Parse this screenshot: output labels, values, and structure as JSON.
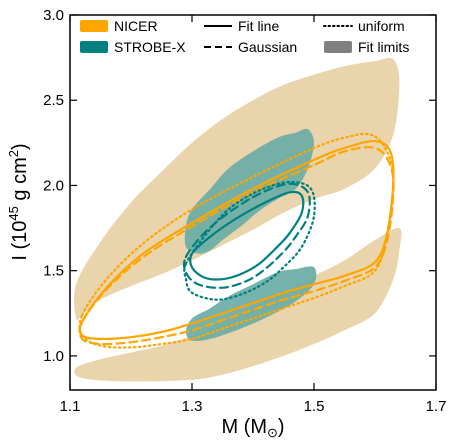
{
  "chart_data": {
    "type": "area",
    "xlabel": {
      "main": "M (M",
      "sub": "⊙",
      "close": ")"
    },
    "ylabel": {
      "main": "I (10",
      "sup1": "45",
      "mid": " g cm",
      "sup2": "2",
      "close": ")"
    },
    "xlim": [
      1.1,
      1.7
    ],
    "ylim": [
      0.8,
      3.0
    ],
    "xticks": [
      "1.1",
      "1.3",
      "1.5",
      "1.7"
    ],
    "xtick_values": [
      1.1,
      1.3,
      1.5,
      1.7
    ],
    "yticks": [
      "1.0",
      "1.5",
      "2.0",
      "2.5",
      "3.0"
    ],
    "ytick_values": [
      1.0,
      1.5,
      2.0,
      2.5,
      3.0
    ],
    "grid": false,
    "legend_position": "top",
    "legend": [
      {
        "label": "NICER",
        "kind": "patch",
        "color": "#ffa500"
      },
      {
        "label": "STROBE-X",
        "kind": "patch",
        "color": "#008080"
      },
      {
        "label": "Fit line",
        "kind": "line",
        "dash": "solid"
      },
      {
        "label": "Gaussian",
        "kind": "line",
        "dash": "dashed"
      },
      {
        "label": "uniform",
        "kind": "line",
        "dash": "dotted"
      },
      {
        "label": "Fit limits",
        "kind": "patch",
        "color": "#808080"
      }
    ],
    "colors": {
      "nicer": "#ffa500",
      "nicer_fill": "#ead4ac",
      "strobex": "#008080",
      "strobex_fill": "#6aada5"
    },
    "series": [
      {
        "name": "NICER",
        "style": "fill_limits",
        "upper_band": [
          [
            1.11,
            1.42
          ],
          [
            1.15,
            1.67
          ],
          [
            1.2,
            1.9
          ],
          [
            1.25,
            2.08
          ],
          [
            1.3,
            2.25
          ],
          [
            1.35,
            2.39
          ],
          [
            1.4,
            2.5
          ],
          [
            1.45,
            2.59
          ],
          [
            1.5,
            2.65
          ],
          [
            1.55,
            2.7
          ],
          [
            1.6,
            2.73
          ],
          [
            1.63,
            2.74
          ],
          [
            1.64,
            2.6
          ],
          [
            1.63,
            2.3
          ],
          [
            1.6,
            2.1
          ],
          [
            1.55,
            1.98
          ],
          [
            1.5,
            1.92
          ],
          [
            1.45,
            1.84
          ],
          [
            1.4,
            1.74
          ],
          [
            1.35,
            1.65
          ],
          [
            1.3,
            1.56
          ],
          [
            1.25,
            1.48
          ],
          [
            1.2,
            1.41
          ],
          [
            1.15,
            1.33
          ],
          [
            1.12,
            1.24
          ],
          [
            1.11,
            1.22
          ]
        ],
        "lower_band": [
          [
            1.11,
            0.93
          ],
          [
            1.15,
            0.98
          ],
          [
            1.2,
            1.02
          ],
          [
            1.25,
            1.06
          ],
          [
            1.3,
            1.12
          ],
          [
            1.35,
            1.2
          ],
          [
            1.4,
            1.29
          ],
          [
            1.45,
            1.38
          ],
          [
            1.5,
            1.47
          ],
          [
            1.55,
            1.56
          ],
          [
            1.6,
            1.68
          ],
          [
            1.64,
            1.75
          ],
          [
            1.64,
            1.62
          ],
          [
            1.63,
            1.45
          ],
          [
            1.6,
            1.25
          ],
          [
            1.55,
            1.15
          ],
          [
            1.5,
            1.07
          ],
          [
            1.45,
            1.0
          ],
          [
            1.4,
            0.94
          ],
          [
            1.35,
            0.89
          ],
          [
            1.3,
            0.86
          ],
          [
            1.2,
            0.85
          ],
          [
            1.12,
            0.87
          ]
        ]
      },
      {
        "name": "STROBE-X",
        "style": "fill_limits",
        "upper_band": [
          [
            1.29,
            1.76
          ],
          [
            1.3,
            1.86
          ],
          [
            1.33,
            1.98
          ],
          [
            1.36,
            2.1
          ],
          [
            1.4,
            2.2
          ],
          [
            1.44,
            2.28
          ],
          [
            1.47,
            2.31
          ],
          [
            1.49,
            2.33
          ],
          [
            1.5,
            2.25
          ],
          [
            1.49,
            2.1
          ],
          [
            1.47,
            1.98
          ],
          [
            1.44,
            1.92
          ],
          [
            1.41,
            1.85
          ],
          [
            1.38,
            1.76
          ],
          [
            1.35,
            1.68
          ],
          [
            1.33,
            1.62
          ],
          [
            1.31,
            1.6
          ],
          [
            1.29,
            1.64
          ]
        ],
        "lower_band": [
          [
            1.29,
            1.14
          ],
          [
            1.3,
            1.22
          ],
          [
            1.33,
            1.28
          ],
          [
            1.36,
            1.35
          ],
          [
            1.4,
            1.42
          ],
          [
            1.44,
            1.49
          ],
          [
            1.47,
            1.51
          ],
          [
            1.5,
            1.52
          ],
          [
            1.5,
            1.42
          ],
          [
            1.47,
            1.32
          ],
          [
            1.43,
            1.24
          ],
          [
            1.38,
            1.16
          ],
          [
            1.33,
            1.1
          ],
          [
            1.3,
            1.09
          ]
        ]
      },
      {
        "name": "NICER",
        "style": "solid",
        "points": [
          [
            1.12,
            1.2
          ],
          [
            1.16,
            1.4
          ],
          [
            1.22,
            1.6
          ],
          [
            1.3,
            1.78
          ],
          [
            1.4,
            1.98
          ],
          [
            1.5,
            2.15
          ],
          [
            1.55,
            2.22
          ],
          [
            1.6,
            2.26
          ],
          [
            1.625,
            2.2
          ],
          [
            1.63,
            2.02
          ],
          [
            1.62,
            1.72
          ],
          [
            1.6,
            1.55
          ],
          [
            1.55,
            1.47
          ],
          [
            1.5,
            1.42
          ],
          [
            1.45,
            1.37
          ],
          [
            1.4,
            1.31
          ],
          [
            1.35,
            1.25
          ],
          [
            1.3,
            1.19
          ],
          [
            1.25,
            1.14
          ],
          [
            1.2,
            1.11
          ],
          [
            1.15,
            1.1
          ],
          [
            1.12,
            1.12
          ]
        ]
      },
      {
        "name": "NICER",
        "style": "dashed",
        "points": [
          [
            1.12,
            1.2
          ],
          [
            1.16,
            1.39
          ],
          [
            1.22,
            1.58
          ],
          [
            1.3,
            1.76
          ],
          [
            1.4,
            1.96
          ],
          [
            1.5,
            2.12
          ],
          [
            1.55,
            2.2
          ],
          [
            1.6,
            2.22
          ],
          [
            1.625,
            2.12
          ],
          [
            1.63,
            1.95
          ],
          [
            1.62,
            1.68
          ],
          [
            1.6,
            1.52
          ],
          [
            1.55,
            1.44
          ],
          [
            1.5,
            1.38
          ],
          [
            1.45,
            1.33
          ],
          [
            1.4,
            1.27
          ],
          [
            1.35,
            1.21
          ],
          [
            1.3,
            1.15
          ],
          [
            1.25,
            1.11
          ],
          [
            1.2,
            1.08
          ],
          [
            1.15,
            1.07
          ],
          [
            1.12,
            1.1
          ]
        ]
      },
      {
        "name": "NICER",
        "style": "dotted",
        "points": [
          [
            1.12,
            1.24
          ],
          [
            1.16,
            1.45
          ],
          [
            1.22,
            1.66
          ],
          [
            1.3,
            1.86
          ],
          [
            1.4,
            2.05
          ],
          [
            1.5,
            2.22
          ],
          [
            1.55,
            2.28
          ],
          [
            1.59,
            2.3
          ],
          [
            1.615,
            2.23
          ],
          [
            1.63,
            2.05
          ],
          [
            1.62,
            1.72
          ],
          [
            1.6,
            1.5
          ],
          [
            1.55,
            1.41
          ],
          [
            1.5,
            1.34
          ],
          [
            1.45,
            1.28
          ],
          [
            1.4,
            1.22
          ],
          [
            1.35,
            1.16
          ],
          [
            1.3,
            1.1
          ],
          [
            1.25,
            1.07
          ],
          [
            1.2,
            1.05
          ],
          [
            1.15,
            1.06
          ],
          [
            1.12,
            1.12
          ]
        ]
      },
      {
        "name": "STROBE-X",
        "style": "solid",
        "points": [
          [
            1.3,
            1.6
          ],
          [
            1.33,
            1.7
          ],
          [
            1.37,
            1.8
          ],
          [
            1.42,
            1.9
          ],
          [
            1.46,
            1.96
          ],
          [
            1.48,
            1.94
          ],
          [
            1.48,
            1.84
          ],
          [
            1.46,
            1.72
          ],
          [
            1.44,
            1.64
          ],
          [
            1.41,
            1.54
          ],
          [
            1.38,
            1.48
          ],
          [
            1.35,
            1.45
          ],
          [
            1.32,
            1.46
          ],
          [
            1.3,
            1.52
          ]
        ]
      },
      {
        "name": "STROBE-X",
        "style": "dashed",
        "points": [
          [
            1.29,
            1.58
          ],
          [
            1.32,
            1.72
          ],
          [
            1.36,
            1.84
          ],
          [
            1.41,
            1.95
          ],
          [
            1.46,
            2.01
          ],
          [
            1.49,
            1.96
          ],
          [
            1.49,
            1.82
          ],
          [
            1.47,
            1.7
          ],
          [
            1.45,
            1.61
          ],
          [
            1.42,
            1.51
          ],
          [
            1.39,
            1.44
          ],
          [
            1.35,
            1.4
          ],
          [
            1.31,
            1.42
          ],
          [
            1.29,
            1.49
          ]
        ]
      },
      {
        "name": "STROBE-X",
        "style": "dotted",
        "points": [
          [
            1.29,
            1.54
          ],
          [
            1.32,
            1.7
          ],
          [
            1.36,
            1.86
          ],
          [
            1.41,
            1.97
          ],
          [
            1.46,
            2.02
          ],
          [
            1.495,
            1.98
          ],
          [
            1.5,
            1.82
          ],
          [
            1.48,
            1.64
          ],
          [
            1.45,
            1.52
          ],
          [
            1.42,
            1.43
          ],
          [
            1.38,
            1.36
          ],
          [
            1.34,
            1.33
          ],
          [
            1.3,
            1.37
          ],
          [
            1.29,
            1.45
          ]
        ]
      }
    ]
  }
}
